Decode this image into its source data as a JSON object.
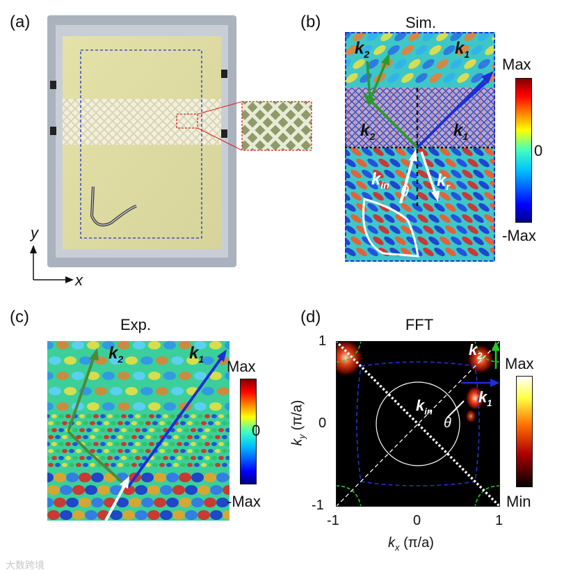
{
  "panels": {
    "a": {
      "label": "(a)",
      "axis_y": "y",
      "axis_x": "x"
    },
    "b": {
      "label": "(b)",
      "title": "Sim.",
      "colorbar": {
        "max": "Max",
        "zero": "0",
        "min": "-Max"
      },
      "vectors": {
        "k1": "k",
        "k1_sub": "1",
        "k2": "k",
        "k2_sub": "2",
        "kin": "k",
        "kin_sub": "in",
        "kr": "k",
        "kr_sub": "r",
        "theta": "θ"
      }
    },
    "c": {
      "label": "(c)",
      "title": "Exp.",
      "colorbar": {
        "max": "Max",
        "zero": "0",
        "min": "-Max"
      },
      "vectors": {
        "k1": "k",
        "k1_sub": "1",
        "k2": "k",
        "k2_sub": "2"
      }
    },
    "d": {
      "label": "(d)",
      "title": "FFT",
      "colorbar": {
        "max": "Max",
        "min": "Min"
      },
      "xlabel": "k",
      "xlabel_sub": "x",
      "xlabel_unit": "(π/a)",
      "ylabel": "k",
      "ylabel_sub": "y",
      "ylabel_unit": "(π/a)",
      "xticks": [
        "-1",
        "0",
        "1"
      ],
      "yticks": [
        "1",
        "0",
        "-1"
      ],
      "vectors": {
        "kin": "k",
        "kin_sub": "in",
        "k1": "k",
        "k1_sub": "1",
        "k2": "k",
        "k2_sub": "2",
        "theta": "θ"
      }
    }
  },
  "watermark": "大数跨境",
  "colors": {
    "blue_dash": "#2233cc",
    "red_box": "#dd2222",
    "green_arrow": "#2a9a2a",
    "blue_arrow": "#1b2fd6",
    "green_dash": "#22cc22"
  }
}
